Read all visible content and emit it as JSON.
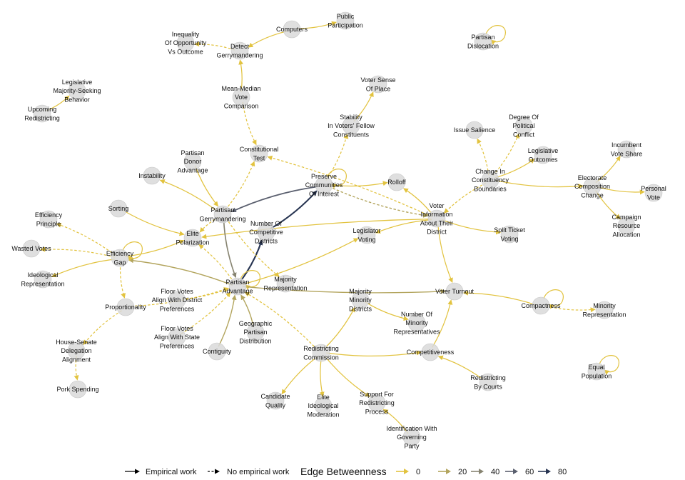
{
  "colors": {
    "node_fill": "#d9d9d9",
    "node_stroke": "#c8c8c8",
    "edge_0": "#e2c340",
    "edge_20": "#b3a55e",
    "edge_40": "#878471",
    "edge_60": "#5a5f6e",
    "edge_80": "#283552"
  },
  "nodes": [
    {
      "id": "computers",
      "label": "Computers"
    },
    {
      "id": "public_participation",
      "label": "Public\nParticipation"
    },
    {
      "id": "partisan_dislocation",
      "label": "Partisan\nDislocation"
    },
    {
      "id": "inequality",
      "label": "Inequality\nOf Opportunity\nVs Outcome"
    },
    {
      "id": "detect_gerry",
      "label": "Detect\nGerrymandering"
    },
    {
      "id": "legislative_majority",
      "label": "Legislative\nMajority-Seeking\nBehavior"
    },
    {
      "id": "upcoming_redistricting",
      "label": "Upcoming\nRedistricting"
    },
    {
      "id": "mean_median",
      "label": "Mean-Median\nVote\nComparison"
    },
    {
      "id": "voter_sense_place",
      "label": "Voter Sense\nOf Place"
    },
    {
      "id": "stability",
      "label": "Stability\nIn Voters' Fellow\nConstituents"
    },
    {
      "id": "issue_salience",
      "label": "Issue Salience"
    },
    {
      "id": "degree_conflict",
      "label": "Degree Of\nPolitical\nConflict"
    },
    {
      "id": "incumbent_vote",
      "label": "Incumbent\nVote Share"
    },
    {
      "id": "partisan_donor",
      "label": "Partisan\nDonor\nAdvantage"
    },
    {
      "id": "constitutional_test",
      "label": "Constitutional\nTest"
    },
    {
      "id": "legislative_outcomes",
      "label": "Legislative\nOutcomes"
    },
    {
      "id": "instability",
      "label": "Instability"
    },
    {
      "id": "change_boundaries",
      "label": "Change In\nConstituency\nBoundaries"
    },
    {
      "id": "preserve_communities",
      "label": "Preserve\nCommunities\nOf Interest"
    },
    {
      "id": "rolloff",
      "label": "Rolloff"
    },
    {
      "id": "electorate_change",
      "label": "Electorate\nComposition\nChange"
    },
    {
      "id": "personal_vote",
      "label": "Personal\nVote"
    },
    {
      "id": "sorting",
      "label": "Sorting"
    },
    {
      "id": "partisan_gerry",
      "label": "Partisan\nGerrymandering"
    },
    {
      "id": "voter_info",
      "label": "Voter\nInformation\nAbout Their\nDistrict"
    },
    {
      "id": "campaign_resource",
      "label": "Campaign\nResource\nAllocation"
    },
    {
      "id": "efficiency_principle",
      "label": "Efficiency\nPrinciple"
    },
    {
      "id": "split_ticket",
      "label": "Split Ticket\nVoting"
    },
    {
      "id": "elite_polarization",
      "label": "Elite\nPolarization"
    },
    {
      "id": "number_competitive",
      "label": "Number Of\nCompetitive\nDistricts"
    },
    {
      "id": "legislator_voting",
      "label": "Legislator\nVoting"
    },
    {
      "id": "wasted_votes",
      "label": "Wasted Votes"
    },
    {
      "id": "efficiency_gap",
      "label": "Efficiency\nGap"
    },
    {
      "id": "ideological_rep",
      "label": "Ideological\nRepresentation"
    },
    {
      "id": "partisan_advantage",
      "label": "Partisan\nAdvantage"
    },
    {
      "id": "majority_rep",
      "label": "Majority\nRepresentation"
    },
    {
      "id": "voter_turnout",
      "label": "Voter Turnout"
    },
    {
      "id": "majority_minority",
      "label": "Majority\nMinority\nDistricts"
    },
    {
      "id": "floor_votes_district",
      "label": "Floor Votes\nAlign With District\nPreferences"
    },
    {
      "id": "proportionality",
      "label": "Proportionality"
    },
    {
      "id": "compactness",
      "label": "Compactness"
    },
    {
      "id": "minority_rep",
      "label": "Minority\nRepresentation"
    },
    {
      "id": "number_minority_reps",
      "label": "Number Of\nMinority\nRepresentatives"
    },
    {
      "id": "floor_votes_state",
      "label": "Floor Votes\nAlign With State\nPreferences"
    },
    {
      "id": "geographic_partisan",
      "label": "Geographic\nPartisan\nDistribution"
    },
    {
      "id": "house_senate",
      "label": "House-Senate\nDelegation\nAlignment"
    },
    {
      "id": "contiguity",
      "label": "Contiguity"
    },
    {
      "id": "redistricting_commission",
      "label": "Redistricting\nCommission"
    },
    {
      "id": "competitiveness",
      "label": "Competitiveness"
    },
    {
      "id": "equal_population",
      "label": "Equal\nPopulation"
    },
    {
      "id": "redistricting_courts",
      "label": "Redistricting\nBy Courts"
    },
    {
      "id": "pork_spending",
      "label": "Pork Spending"
    },
    {
      "id": "candidate_quality",
      "label": "Candidate\nQuality"
    },
    {
      "id": "elite_ideological",
      "label": "Elite\nIdeological\nModeration"
    },
    {
      "id": "support_redistricting",
      "label": "Support For\nRedistricting\nProcess"
    },
    {
      "id": "identification_party",
      "label": "Identification With\nGoverning\nParty"
    }
  ],
  "edges": [
    {
      "source": "computers",
      "target": "public_participation",
      "empirical": true,
      "betweenness": 2
    },
    {
      "source": "computers",
      "target": "detect_gerry",
      "empirical": true,
      "betweenness": 2
    },
    {
      "source": "detect_gerry",
      "target": "inequality",
      "empirical": false,
      "betweenness": 2
    },
    {
      "source": "partisan_dislocation",
      "target": "partisan_dislocation",
      "empirical": true,
      "betweenness": 1
    },
    {
      "source": "upcoming_redistricting",
      "target": "legislative_majority",
      "empirical": true,
      "betweenness": 1
    },
    {
      "source": "mean_median",
      "target": "detect_gerry",
      "empirical": true,
      "betweenness": 4
    },
    {
      "source": "mean_median",
      "target": "constitutional_test",
      "empirical": false,
      "betweenness": 4
    },
    {
      "source": "partisan_gerry",
      "target": "constitutional_test",
      "empirical": false,
      "betweenness": 5
    },
    {
      "source": "voter_info",
      "target": "constitutional_test",
      "empirical": false,
      "betweenness": 5
    },
    {
      "source": "stability",
      "target": "voter_sense_place",
      "empirical": true,
      "betweenness": 3
    },
    {
      "source": "preserve_communities",
      "target": "stability",
      "empirical": false,
      "betweenness": 3
    },
    {
      "source": "preserve_communities",
      "target": "preserve_communities",
      "empirical": true,
      "betweenness": 1
    },
    {
      "source": "preserve_communities",
      "target": "rolloff",
      "empirical": true,
      "betweenness": 3
    },
    {
      "source": "preserve_communities",
      "target": "voter_info",
      "empirical": false,
      "betweenness": 18
    },
    {
      "source": "preserve_communities",
      "target": "partisan_gerry",
      "empirical": true,
      "betweenness": 55
    },
    {
      "source": "number_competitive",
      "target": "preserve_communities",
      "empirical": true,
      "betweenness": 75
    },
    {
      "source": "partisan_advantage",
      "target": "number_competitive",
      "empirical": true,
      "betweenness": 80
    },
    {
      "source": "voter_info",
      "target": "rolloff",
      "empirical": true,
      "betweenness": 3
    },
    {
      "source": "voter_info",
      "target": "legislator_voting",
      "empirical": true,
      "betweenness": 4
    },
    {
      "source": "voter_info",
      "target": "split_ticket",
      "empirical": true,
      "betweenness": 3
    },
    {
      "source": "voter_info",
      "target": "voter_turnout",
      "empirical": true,
      "betweenness": 4
    },
    {
      "source": "voter_info",
      "target": "elite_polarization",
      "empirical": true,
      "betweenness": 5
    },
    {
      "source": "change_boundaries",
      "target": "issue_salience",
      "empirical": false,
      "betweenness": 2
    },
    {
      "source": "change_boundaries",
      "target": "degree_conflict",
      "empirical": false,
      "betweenness": 2
    },
    {
      "source": "change_boundaries",
      "target": "legislative_outcomes",
      "empirical": true,
      "betweenness": 2
    },
    {
      "source": "change_boundaries",
      "target": "voter_info",
      "empirical": false,
      "betweenness": 4
    },
    {
      "source": "change_boundaries",
      "target": "electorate_change",
      "empirical": true,
      "betweenness": 4
    },
    {
      "source": "electorate_change",
      "target": "incumbent_vote",
      "empirical": true,
      "betweenness": 2
    },
    {
      "source": "electorate_change",
      "target": "personal_vote",
      "empirical": true,
      "betweenness": 2
    },
    {
      "source": "electorate_change",
      "target": "campaign_resource",
      "empirical": true,
      "betweenness": 2
    },
    {
      "source": "partisan_donor",
      "target": "partisan_gerry",
      "empirical": true,
      "betweenness": 10
    },
    {
      "source": "partisan_gerry",
      "target": "instability",
      "empirical": true,
      "betweenness": 4
    },
    {
      "source": "sorting",
      "target": "elite_polarization",
      "empirical": true,
      "betweenness": 4
    },
    {
      "source": "partisan_gerry",
      "target": "elite_polarization",
      "empirical": false,
      "betweenness": 8
    },
    {
      "source": "partisan_gerry",
      "target": "partisan_advantage",
      "empirical": true,
      "betweenness": 40
    },
    {
      "source": "partisan_gerry",
      "target": "majority_rep",
      "empirical": false,
      "betweenness": 5
    },
    {
      "source": "partisan_advantage",
      "target": "elite_polarization",
      "empirical": false,
      "betweenness": 6
    },
    {
      "source": "partisan_advantage",
      "target": "partisan_advantage",
      "empirical": true,
      "betweenness": 1
    },
    {
      "source": "partisan_advantage",
      "target": "legislator_voting",
      "empirical": true,
      "betweenness": 8
    },
    {
      "source": "partisan_advantage",
      "target": "efficiency_gap",
      "empirical": true,
      "betweenness": 22
    },
    {
      "source": "efficiency_gap",
      "target": "efficiency_gap",
      "empirical": true,
      "betweenness": 1
    },
    {
      "source": "efficiency_gap",
      "target": "efficiency_principle",
      "empirical": false,
      "betweenness": 3
    },
    {
      "source": "efficiency_gap",
      "target": "wasted_votes",
      "empirical": false,
      "betweenness": 3
    },
    {
      "source": "efficiency_gap",
      "target": "ideological_rep",
      "empirical": true,
      "betweenness": 3
    },
    {
      "source": "efficiency_gap",
      "target": "elite_polarization",
      "empirical": true,
      "betweenness": 4
    },
    {
      "source": "efficiency_gap",
      "target": "proportionality",
      "empirical": false,
      "betweenness": 4
    },
    {
      "source": "proportionality",
      "target": "house_senate",
      "empirical": false,
      "betweenness": 3
    },
    {
      "source": "house_senate",
      "target": "pork_spending",
      "empirical": false,
      "betweenness": 3
    },
    {
      "source": "proportionality",
      "target": "partisan_advantage",
      "empirical": false,
      "betweenness": 6
    },
    {
      "source": "floor_votes_district",
      "target": "partisan_advantage",
      "empirical": false,
      "betweenness": 5
    },
    {
      "source": "floor_votes_state",
      "target": "partisan_advantage",
      "empirical": false,
      "betweenness": 5
    },
    {
      "source": "contiguity",
      "target": "partisan_advantage",
      "empirical": true,
      "betweenness": 18
    },
    {
      "source": "geographic_partisan",
      "target": "partisan_advantage",
      "empirical": true,
      "betweenness": 18
    },
    {
      "source": "redistricting_commission",
      "target": "partisan_advantage",
      "empirical": false,
      "betweenness": 10
    },
    {
      "source": "redistricting_commission",
      "target": "majority_minority",
      "empirical": true,
      "betweenness": 6
    },
    {
      "source": "partisan_advantage",
      "target": "voter_turnout",
      "empirical": true,
      "betweenness": 12
    },
    {
      "source": "majority_minority",
      "target": "number_minority_reps",
      "empirical": true,
      "betweenness": 3
    },
    {
      "source": "compactness",
      "target": "compactness",
      "empirical": true,
      "betweenness": 1
    },
    {
      "source": "compactness",
      "target": "voter_turnout",
      "empirical": true,
      "betweenness": 3
    },
    {
      "source": "compactness",
      "target": "minority_rep",
      "empirical": false,
      "betweenness": 3
    },
    {
      "source": "equal_population",
      "target": "equal_population",
      "empirical": true,
      "betweenness": 1
    },
    {
      "source": "redistricting_commission",
      "target": "competitiveness",
      "empirical": true,
      "betweenness": 4
    },
    {
      "source": "competitiveness",
      "target": "voter_turnout",
      "empirical": true,
      "betweenness": 4
    },
    {
      "source": "redistricting_courts",
      "target": "competitiveness",
      "empirical": true,
      "betweenness": 3
    },
    {
      "source": "redistricting_commission",
      "target": "candidate_quality",
      "empirical": true,
      "betweenness": 3
    },
    {
      "source": "redistricting_commission",
      "target": "elite_ideological",
      "empirical": true,
      "betweenness": 3
    },
    {
      "source": "redistricting_commission",
      "target": "support_redistricting",
      "empirical": true,
      "betweenness": 3
    },
    {
      "source": "identification_party",
      "target": "support_redistricting",
      "empirical": true,
      "betweenness": 3
    }
  ],
  "legend": {
    "empirical_label": "Empirical work",
    "non_empirical_label": "No empirical work",
    "betweenness_title": "Edge Betweenness",
    "betweenness_breaks": [
      "0",
      "20",
      "40",
      "60",
      "80"
    ]
  }
}
